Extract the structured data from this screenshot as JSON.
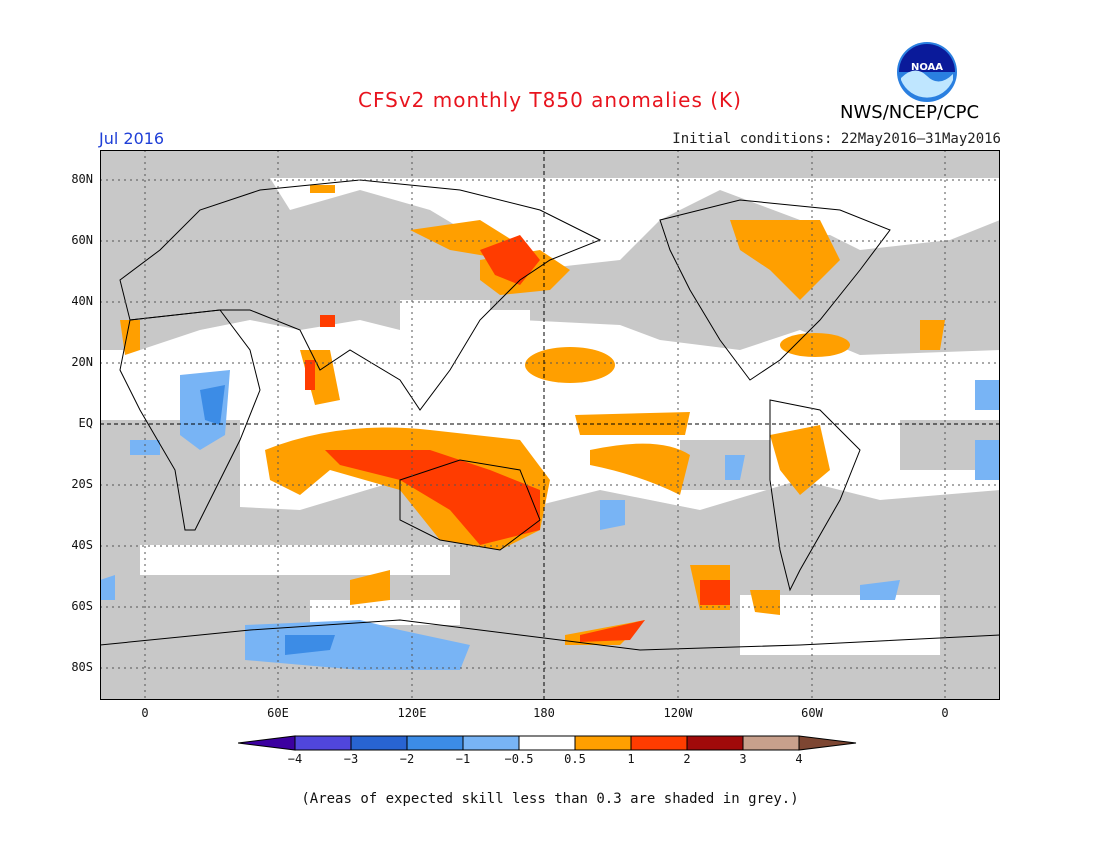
{
  "header": {
    "title": "CFSv2 monthly T850 anomalies (K)",
    "period": "Jul 2016",
    "initial_conditions": "Initial conditions: 22May2016–31May2016",
    "agency": "NWS/NCEP/CPC",
    "logo_text": "NOAA"
  },
  "map": {
    "lat_labels": [
      "80N",
      "60N",
      "40N",
      "20N",
      "EQ",
      "20S",
      "40S",
      "60S",
      "80S"
    ],
    "lon_labels": [
      "0",
      "60E",
      "120E",
      "180",
      "120W",
      "60W",
      "0"
    ],
    "colors": {
      "land_grey": "#c8c8c8",
      "positive_05_1": "#ff9f00",
      "positive_1_2": "#ff3c00",
      "negative_05_1": "#78b4f5",
      "negative_1_2": "#3c8ce6"
    }
  },
  "colorbar": {
    "labels": [
      "−4",
      "−3",
      "−2",
      "−1",
      "−0.5",
      "0.5",
      "1",
      "2",
      "3",
      "4"
    ],
    "colors": [
      "#3c00a0",
      "#5046dc",
      "#2864d2",
      "#3c8ce6",
      "#78b4f5",
      "#ffffff",
      "#ff9f00",
      "#ff3c00",
      "#a00a0a",
      "#c8a08c",
      "#7d4632"
    ]
  },
  "footnote": "(Areas of expected skill less than 0.3 are shaded in grey.)"
}
